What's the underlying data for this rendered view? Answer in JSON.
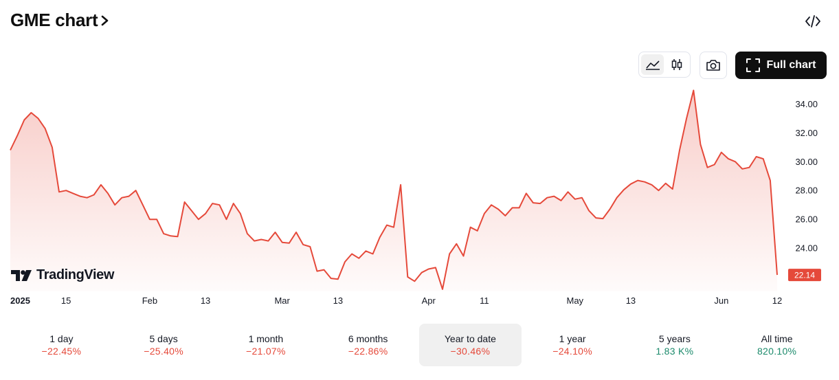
{
  "header": {
    "title": "GME chart",
    "full_chart_label": "Full chart"
  },
  "icons": {
    "title_chevron": "chevron-right-icon",
    "embed": "code-brackets-icon",
    "line_style": "area-chart-icon",
    "candle_style": "candlestick-icon",
    "snapshot": "camera-icon",
    "fullscreen": "fullscreen-corners-icon"
  },
  "brand": {
    "logo_text": "TradingView"
  },
  "periods": [
    {
      "label": "1 day",
      "change": "−22.45%",
      "trend": "neg",
      "active": false
    },
    {
      "label": "5 days",
      "change": "−25.40%",
      "trend": "neg",
      "active": false
    },
    {
      "label": "1 month",
      "change": "−21.07%",
      "trend": "neg",
      "active": false
    },
    {
      "label": "6 months",
      "change": "−22.86%",
      "trend": "neg",
      "active": false
    },
    {
      "label": "Year to date",
      "change": "−30.46%",
      "trend": "neg",
      "active": true
    },
    {
      "label": "1 year",
      "change": "−24.10%",
      "trend": "neg",
      "active": false
    },
    {
      "label": "5 years",
      "change": "1.83 K%",
      "trend": "pos",
      "active": false
    },
    {
      "label": "All time",
      "change": "820.10%",
      "trend": "pos",
      "active": false
    }
  ],
  "colors": {
    "line": "#e5493a",
    "positive": "#1b8a6b",
    "negative": "#e5493a",
    "button_dark": "#0f0f0f"
  },
  "chart_data": {
    "type": "area",
    "y_ticks": [
      "24.00",
      "26.00",
      "28.00",
      "30.00",
      "32.00",
      "34.00"
    ],
    "ylim": [
      21.0,
      35.5
    ],
    "x_tick_labels": [
      {
        "label": "2025",
        "bold": true,
        "index": 0
      },
      {
        "label": "15",
        "index": 8
      },
      {
        "label": "Feb",
        "index": 20
      },
      {
        "label": "13",
        "index": 28
      },
      {
        "label": "Mar",
        "index": 39
      },
      {
        "label": "13",
        "index": 47
      },
      {
        "label": "Apr",
        "index": 60
      },
      {
        "label": "11",
        "index": 68
      },
      {
        "label": "May",
        "index": 81
      },
      {
        "label": "13",
        "index": 89
      },
      {
        "label": "Jun",
        "index": 102
      },
      {
        "label": "12",
        "index": 110
      }
    ],
    "last_value_label": "22.14",
    "series": [
      {
        "values": [
          30.8,
          31.8,
          32.9,
          33.4,
          33.0,
          32.3,
          31.0,
          27.9,
          28.0,
          27.8,
          27.6,
          27.5,
          27.7,
          28.4,
          27.8,
          27.0,
          27.5,
          27.6,
          28.0,
          27.0,
          26.0,
          26.0,
          25.0,
          24.85,
          24.8,
          27.2,
          26.6,
          26.0,
          26.4,
          27.1,
          27.0,
          26.0,
          27.1,
          26.4,
          25.0,
          24.5,
          24.6,
          24.5,
          25.1,
          24.4,
          24.35,
          25.1,
          24.25,
          24.1,
          22.4,
          22.5,
          21.9,
          21.85,
          23.05,
          23.6,
          23.3,
          23.8,
          23.6,
          24.75,
          25.6,
          25.45,
          28.4,
          22.0,
          21.7,
          22.3,
          22.55,
          22.65,
          21.15,
          23.6,
          24.3,
          23.45,
          25.45,
          25.2,
          26.4,
          27.0,
          26.7,
          26.25,
          26.8,
          26.8,
          27.8,
          27.15,
          27.1,
          27.5,
          27.6,
          27.3,
          27.9,
          27.4,
          27.5,
          26.6,
          26.1,
          26.05,
          26.7,
          27.5,
          28.05,
          28.45,
          28.7,
          28.6,
          28.4,
          28.0,
          28.5,
          28.1,
          30.8,
          33.0,
          34.95,
          31.2,
          29.6,
          29.8,
          30.65,
          30.2,
          30.0,
          29.5,
          29.6,
          30.35,
          30.2,
          28.7,
          22.14
        ]
      }
    ]
  }
}
